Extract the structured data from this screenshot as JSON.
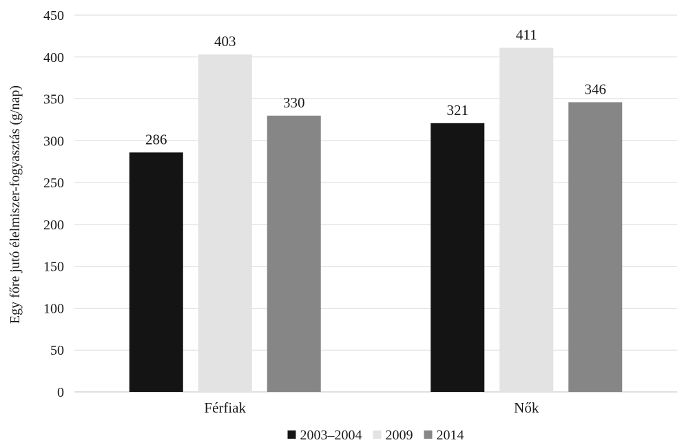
{
  "chart_data": {
    "type": "bar",
    "ylabel": "Egy főre jutó élelmiszer-fogyasztás (g/nap)",
    "xlabel": "",
    "ylim": [
      0,
      450
    ],
    "yticks": [
      0,
      50,
      100,
      150,
      200,
      250,
      300,
      350,
      400,
      450
    ],
    "categories": [
      "Férfiak",
      "Nők"
    ],
    "series": [
      {
        "name": "2003–2004",
        "color": "#141414",
        "values": [
          286,
          321
        ]
      },
      {
        "name": "2009",
        "color": "#e3e3e3",
        "values": [
          403,
          411
        ]
      },
      {
        "name": "2014",
        "color": "#868686",
        "values": [
          330,
          346
        ]
      }
    ],
    "grid": true,
    "legend_position": "bottom"
  }
}
